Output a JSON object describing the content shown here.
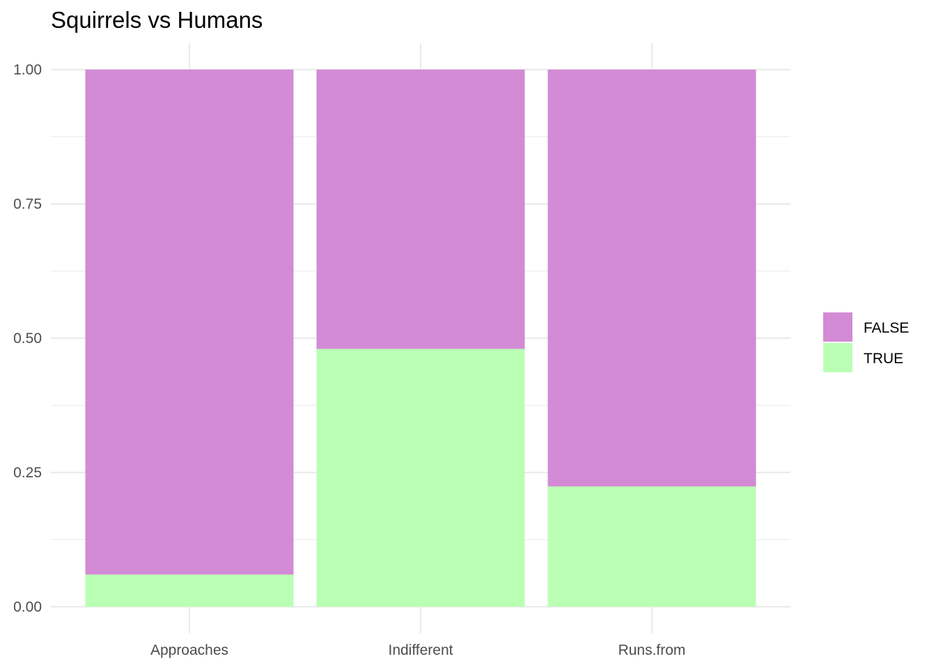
{
  "chart_data": {
    "type": "bar",
    "stacked": true,
    "title": "Squirrels vs Humans",
    "xlabel": "",
    "ylabel": "",
    "categories": [
      "Approaches",
      "Indifferent",
      "Runs.from"
    ],
    "series": [
      {
        "name": "FALSE",
        "color": "#d28bd4",
        "values": [
          0.94,
          0.52,
          0.776
        ]
      },
      {
        "name": "TRUE",
        "color": "#baffb4",
        "values": [
          0.06,
          0.48,
          0.224
        ]
      }
    ],
    "ylim": [
      0,
      1
    ],
    "yticks": [
      0,
      0.25,
      0.5,
      0.75,
      1
    ],
    "ytick_labels": [
      "0.00",
      "0.25",
      "0.50",
      "0.75",
      "1.00"
    ],
    "grid": true,
    "legend_position": "right"
  }
}
